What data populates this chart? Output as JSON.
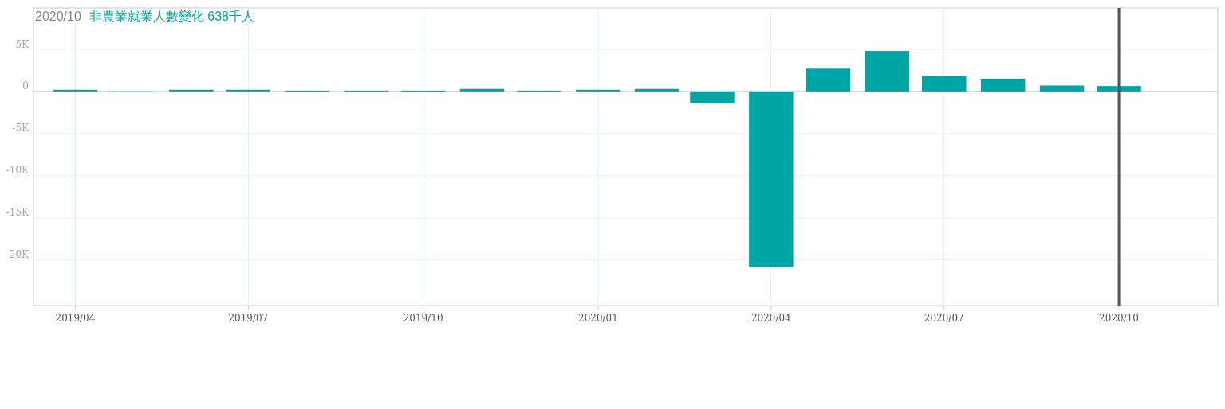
{
  "chart_data": {
    "type": "bar",
    "title": "2020/10",
    "subtitle": "非農業就業人數變化 638千人",
    "x": [
      "2019-04",
      "2019-05",
      "2019-06",
      "2019-07",
      "2019-08",
      "2019-09",
      "2019-10",
      "2019-11",
      "2019-12",
      "2020-01",
      "2020-02",
      "2020-03",
      "2020-04",
      "2020-05",
      "2020-06",
      "2020-07",
      "2020-08",
      "2020-09",
      "2020-10"
    ],
    "values": [
      200,
      -100,
      200,
      200,
      100,
      100,
      100,
      300,
      100,
      200,
      300,
      -1400,
      -20800,
      2700,
      4800,
      1800,
      1500,
      700,
      638
    ],
    "color": "#00a6a6",
    "xlim": [
      "2019-03-10",
      "2020-11-22"
    ],
    "xticks": [
      {
        "value": "2019-04",
        "label": "2019/04"
      },
      {
        "value": "2019-07",
        "label": "2019/07"
      },
      {
        "value": "2019-10",
        "label": "2019/10"
      },
      {
        "value": "2020-01",
        "label": "2020/01"
      },
      {
        "value": "2020-04",
        "label": "2020/04"
      },
      {
        "value": "2020-07",
        "label": "2020/07"
      },
      {
        "value": "2020-10",
        "label": "2020/10"
      }
    ],
    "ylim": [
      -25400,
      9900
    ],
    "yticks": [
      {
        "value": 5000,
        "label": "5K"
      },
      0,
      {
        "value": -5000,
        "label": "-5K"
      },
      {
        "value": -10000,
        "label": "-10K"
      },
      {
        "value": -15000,
        "label": "-15K"
      },
      {
        "value": -20000,
        "label": "-20K"
      }
    ],
    "grid": true,
    "ref_lines": [
      {
        "axis": "x",
        "value": "2020-10",
        "color": "#555555"
      }
    ]
  }
}
